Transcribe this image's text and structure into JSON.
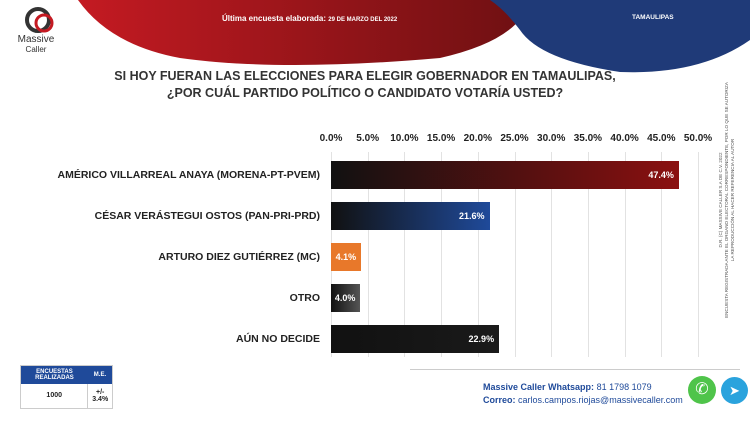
{
  "header": {
    "label": "Última encuesta elaborada:",
    "date": "29 DE MARZO DEL 2022",
    "state": "TAMAULIPAS"
  },
  "logo": {
    "line1": "Massive",
    "line2": "Caller"
  },
  "title": {
    "line1": "SI HOY FUERAN LAS ELECCIONES PARA ELEGIR GOBERNADOR EN TAMAULIPAS,",
    "line2": "¿POR CUÁL PARTIDO POLÍTICO O CANDIDATO VOTARÍA USTED?"
  },
  "chart_data": {
    "type": "bar",
    "orientation": "horizontal",
    "categories": [
      "AMÉRICO VILLARREAL ANAYA (MORENA-PT-PVEM)",
      "CÉSAR VERÁSTEGUI OSTOS (PAN-PRI-PRD)",
      "ARTURO DIEZ GUTIÉRREZ (MC)",
      "OTRO",
      "AÚN NO DECIDE"
    ],
    "values": [
      47.4,
      21.6,
      4.1,
      4.0,
      22.9
    ],
    "data_labels": [
      "47.4%",
      "21.6%",
      "4.1%",
      "4.0%",
      "22.9%"
    ],
    "colors": [
      "#8b1010",
      "#1f4a9a",
      "#e8782a",
      "#555555",
      "#1a1a1a"
    ],
    "xlim": [
      0,
      50
    ],
    "ticks": [
      "0.0%",
      "5.0%",
      "10.0%",
      "15.0%",
      "20.0%",
      "25.0%",
      "30.0%",
      "35.0%",
      "40.0%",
      "45.0%",
      "50.0%"
    ],
    "grid": true
  },
  "copyright": {
    "line1": "D.R. (C) MASSIVE CALLER S.A DE C.V. 2022",
    "line2": "ENCUESTA REGISTRADA ANTE EL ORGANO ELECTORAL CORRESPONDIENTE, POR LO QUE SE AUTORIZA LA REPRODUCCIÓN AL HACER REFERENCIA AL AUTOR"
  },
  "stats": {
    "h1": "ENCUESTAS REALIZADAS",
    "h2": "M.E.",
    "v1": "1000",
    "v2": "+/- 3.4%"
  },
  "contact": {
    "wa_label": "Massive Caller Whatsapp:",
    "wa_value": "81 1798 1079",
    "mail_label": "Correo:",
    "mail_value": "carlos.campos.riojas@massivecaller.com"
  }
}
